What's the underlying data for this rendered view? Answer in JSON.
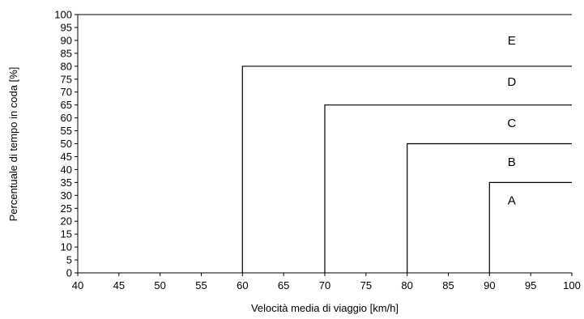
{
  "chart_data": {
    "type": "line",
    "title": "",
    "xlabel": "Velocità media di viaggio [km/h]",
    "ylabel": "Percentuale di tempo in coda [%]",
    "xlim": [
      40,
      100
    ],
    "ylim": [
      0,
      100
    ],
    "x_ticks": [
      40,
      45,
      50,
      55,
      60,
      65,
      70,
      75,
      80,
      85,
      90,
      95,
      100
    ],
    "y_ticks": [
      0,
      5,
      10,
      15,
      20,
      25,
      30,
      35,
      40,
      45,
      50,
      55,
      60,
      65,
      70,
      75,
      80,
      85,
      90,
      95,
      100
    ],
    "grid": false,
    "legend": "none",
    "boundaries": [
      {
        "name": "A-B",
        "points": [
          [
            90,
            0
          ],
          [
            90,
            35
          ],
          [
            100,
            35
          ]
        ]
      },
      {
        "name": "B-C",
        "points": [
          [
            80,
            0
          ],
          [
            80,
            50
          ],
          [
            100,
            50
          ]
        ]
      },
      {
        "name": "C-D",
        "points": [
          [
            70,
            0
          ],
          [
            70,
            65
          ],
          [
            100,
            65
          ]
        ]
      },
      {
        "name": "D-E",
        "points": [
          [
            60,
            0
          ],
          [
            60,
            80
          ],
          [
            100,
            80
          ]
        ]
      }
    ],
    "zone_labels": [
      {
        "text": "A",
        "x": 92.7,
        "y": 28
      },
      {
        "text": "B",
        "x": 92.7,
        "y": 43
      },
      {
        "text": "C",
        "x": 92.7,
        "y": 58
      },
      {
        "text": "D",
        "x": 92.7,
        "y": 74
      },
      {
        "text": "E",
        "x": 92.7,
        "y": 90
      }
    ],
    "line_color": "#000000"
  }
}
